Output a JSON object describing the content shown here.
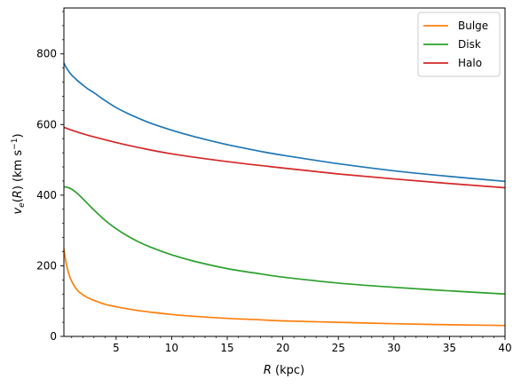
{
  "chart_data": {
    "type": "line",
    "xlabel": "R (kpc)",
    "ylabel": "v_e(R) (km s^-1)",
    "xlim": [
      0.3,
      40
    ],
    "ylim": [
      0,
      930
    ],
    "xticks": [
      5,
      10,
      15,
      20,
      25,
      30,
      35,
      40
    ],
    "yticks": [
      0,
      200,
      400,
      600,
      800
    ],
    "legend": "top-right",
    "grid": false,
    "series": [
      {
        "name": "",
        "color": "#1f77b4",
        "x": [
          0.3,
          0.5,
          0.75,
          1,
          1.5,
          2,
          2.5,
          3,
          4,
          5,
          6,
          7,
          8,
          10,
          12,
          15,
          18,
          20,
          25,
          30,
          35,
          40
        ],
        "y": [
          774,
          762,
          750,
          740,
          725,
          712,
          700,
          690,
          668,
          648,
          632,
          618,
          605,
          584,
          566,
          543,
          524,
          513,
          489,
          469,
          453,
          439
        ]
      },
      {
        "name": "Bulge",
        "color": "#ff7f0e",
        "x": [
          0.3,
          0.5,
          0.75,
          1,
          1.5,
          2,
          2.5,
          3,
          4,
          5,
          6,
          7,
          8,
          10,
          12,
          15,
          18,
          20,
          25,
          30,
          35,
          40
        ],
        "y": [
          248,
          208,
          176,
          156,
          131,
          118,
          109,
          102,
          91,
          84,
          78,
          73,
          69,
          62,
          57,
          51,
          47,
          44,
          40,
          36,
          33,
          31
        ]
      },
      {
        "name": "Disk",
        "color": "#2ca02c",
        "x": [
          0.3,
          0.5,
          1,
          1.5,
          2,
          2.5,
          3,
          4,
          5,
          6,
          7,
          8,
          10,
          12,
          15,
          18,
          20,
          25,
          30,
          35,
          40
        ],
        "y": [
          423,
          423,
          417,
          405,
          390,
          374,
          358,
          329,
          305,
          285,
          268,
          254,
          231,
          213,
          192,
          177,
          168,
          151,
          139,
          129,
          120
        ]
      },
      {
        "name": "Halo",
        "color": "#d62728",
        "x": [
          0.3,
          1,
          2,
          3,
          5,
          7,
          10,
          15,
          20,
          25,
          30,
          35,
          40
        ],
        "y": [
          592,
          584,
          574,
          565,
          549,
          535,
          517,
          495,
          477,
          460,
          446,
          433,
          421
        ]
      }
    ]
  }
}
